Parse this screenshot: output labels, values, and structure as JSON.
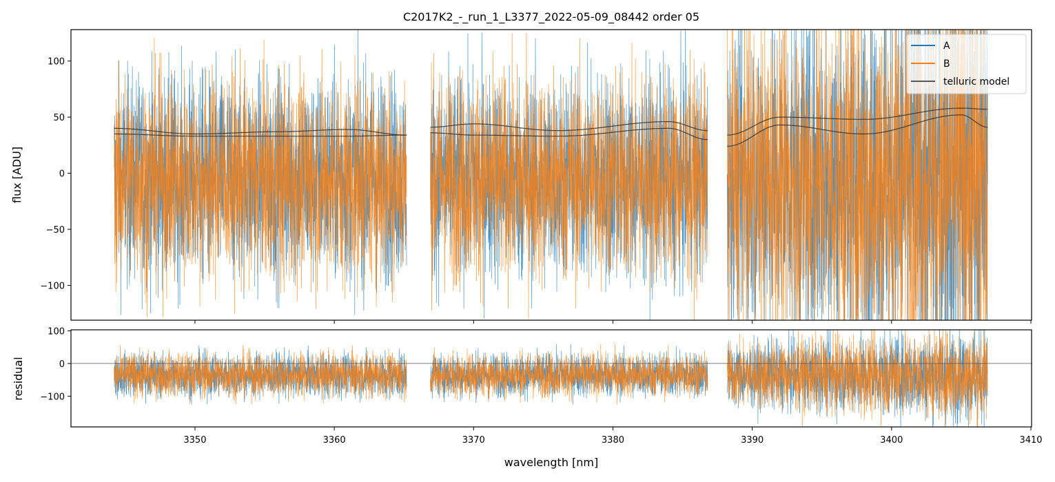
{
  "chart_data": {
    "type": "line",
    "title": "C2017K2_-_run_1_L3377_2022-05-09_08442  order 05",
    "xlabel": "wavelength [nm]",
    "xlim": [
      3341.1,
      3410.05
    ],
    "xticks": [
      3350,
      3360,
      3370,
      3380,
      3390,
      3400,
      3410
    ],
    "panels": [
      {
        "name": "flux",
        "ylabel": "flux [ADU]",
        "ylim": [
          -131,
          128
        ],
        "yticks": [
          100,
          50,
          0,
          -50,
          -100
        ],
        "yticklabels": [
          "100",
          "50",
          "0",
          "−50",
          "−100"
        ],
        "noise_center": -5,
        "noise_spread": 55
      },
      {
        "name": "residual",
        "ylabel": "residual",
        "ylim": [
          -194,
          103
        ],
        "yticks": [
          100,
          0,
          -100
        ],
        "yticklabels": [
          "100",
          "0",
          "−100"
        ],
        "noise_center": -35,
        "noise_spread": 40,
        "zero_line": true
      }
    ],
    "segments": [
      [
        3344.2,
        3365.2
      ],
      [
        3366.9,
        3386.8
      ],
      [
        3388.2,
        3406.9
      ]
    ],
    "series": [
      {
        "name": "A",
        "color": "#1f77b4"
      },
      {
        "name": "B",
        "color": "#ff7f0e"
      },
      {
        "name": "telluric model",
        "color": "#333333"
      }
    ],
    "telluric_model": [
      {
        "x": [
          3344.2,
          3350,
          3356,
          3361,
          3365.2
        ],
        "upper": [
          40,
          35,
          37,
          39,
          34
        ],
        "lower": [
          35,
          33,
          33,
          33,
          34
        ]
      },
      {
        "x": [
          3366.9,
          3370,
          3376,
          3384,
          3386.8
        ],
        "upper": [
          41,
          44,
          38,
          46,
          38
        ],
        "lower": [
          36,
          34,
          33,
          40,
          30
        ]
      },
      {
        "x": [
          3388.2,
          3392,
          3398,
          3405,
          3406.9
        ],
        "upper": [
          34,
          50,
          48,
          58,
          57
        ],
        "lower": [
          24,
          43,
          35,
          52,
          41
        ]
      }
    ],
    "legend": {
      "placement": "top-right",
      "entries": [
        "A",
        "B",
        "telluric model"
      ]
    }
  }
}
